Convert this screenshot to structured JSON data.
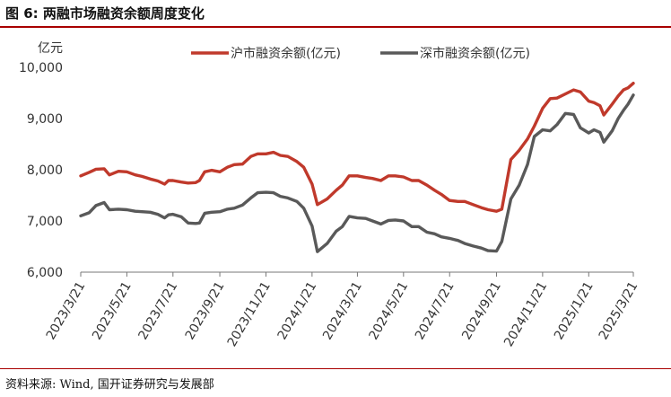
{
  "header": {
    "title": "图 6:  两融市场融资余额周度变化"
  },
  "footer": {
    "source": "资料来源: Wind, 国开证券研究与发展部"
  },
  "colors": {
    "accent": "#a80000",
    "series_sh": "#c0392b",
    "series_sz": "#595959"
  },
  "chart_data": {
    "type": "line",
    "ylabel": "亿元",
    "ylim": [
      6000,
      10000
    ],
    "yticks": [
      "6,000",
      "7,000",
      "8,000",
      "9,000",
      "10,000"
    ],
    "ytick_values": [
      6000,
      7000,
      8000,
      9000,
      10000
    ],
    "xlim": [
      "2023-03-21",
      "2025-03-21"
    ],
    "x_tick_labels": [
      "2023/3/21",
      "2023/5/21",
      "2023/7/21",
      "2023/9/21",
      "2023/11/21",
      "2024/1/21",
      "2024/3/21",
      "2024/5/21",
      "2024/7/21",
      "2024/9/21",
      "2024/11/21",
      "2025/1/21",
      "2025/3/21"
    ],
    "x_tick_dates": [
      "2023-03-21",
      "2023-05-21",
      "2023-07-21",
      "2023-09-21",
      "2023-11-21",
      "2024-01-21",
      "2024-03-21",
      "2024-05-21",
      "2024-07-21",
      "2024-09-21",
      "2024-11-21",
      "2025-01-21",
      "2025-03-21"
    ],
    "grid": false,
    "legend_position": "top-right",
    "series": [
      {
        "name": "沪市融资余额(亿元)",
        "color": "#c0392b",
        "points": [
          [
            "2023-03-21",
            7880
          ],
          [
            "2023-04-01",
            7950
          ],
          [
            "2023-04-10",
            8010
          ],
          [
            "2023-04-21",
            8020
          ],
          [
            "2023-04-28",
            7900
          ],
          [
            "2023-05-10",
            7970
          ],
          [
            "2023-05-21",
            7960
          ],
          [
            "2023-06-01",
            7900
          ],
          [
            "2023-06-10",
            7870
          ],
          [
            "2023-06-21",
            7820
          ],
          [
            "2023-07-01",
            7780
          ],
          [
            "2023-07-10",
            7720
          ],
          [
            "2023-07-15",
            7790
          ],
          [
            "2023-07-21",
            7790
          ],
          [
            "2023-08-01",
            7760
          ],
          [
            "2023-08-10",
            7740
          ],
          [
            "2023-08-20",
            7750
          ],
          [
            "2023-08-25",
            7790
          ],
          [
            "2023-09-01",
            7960
          ],
          [
            "2023-09-10",
            7990
          ],
          [
            "2023-09-21",
            7960
          ],
          [
            "2023-10-01",
            8050
          ],
          [
            "2023-10-10",
            8100
          ],
          [
            "2023-10-21",
            8110
          ],
          [
            "2023-11-01",
            8260
          ],
          [
            "2023-11-10",
            8310
          ],
          [
            "2023-11-21",
            8310
          ],
          [
            "2023-12-01",
            8340
          ],
          [
            "2023-12-10",
            8280
          ],
          [
            "2023-12-20",
            8260
          ],
          [
            "2024-01-01",
            8160
          ],
          [
            "2024-01-10",
            8050
          ],
          [
            "2024-01-21",
            7720
          ],
          [
            "2024-01-28",
            7320
          ],
          [
            "2024-02-10",
            7430
          ],
          [
            "2024-02-22",
            7600
          ],
          [
            "2024-03-01",
            7700
          ],
          [
            "2024-03-10",
            7880
          ],
          [
            "2024-03-21",
            7880
          ],
          [
            "2024-04-01",
            7850
          ],
          [
            "2024-04-10",
            7830
          ],
          [
            "2024-04-21",
            7790
          ],
          [
            "2024-05-01",
            7880
          ],
          [
            "2024-05-10",
            7880
          ],
          [
            "2024-05-21",
            7860
          ],
          [
            "2024-06-01",
            7790
          ],
          [
            "2024-06-10",
            7790
          ],
          [
            "2024-06-21",
            7700
          ],
          [
            "2024-07-01",
            7600
          ],
          [
            "2024-07-10",
            7520
          ],
          [
            "2024-07-21",
            7400
          ],
          [
            "2024-08-01",
            7380
          ],
          [
            "2024-08-10",
            7380
          ],
          [
            "2024-08-21",
            7320
          ],
          [
            "2024-09-01",
            7260
          ],
          [
            "2024-09-10",
            7220
          ],
          [
            "2024-09-21",
            7190
          ],
          [
            "2024-09-28",
            7230
          ],
          [
            "2024-10-10",
            8200
          ],
          [
            "2024-10-21",
            8380
          ],
          [
            "2024-11-01",
            8600
          ],
          [
            "2024-11-10",
            8850
          ],
          [
            "2024-11-21",
            9200
          ],
          [
            "2024-12-01",
            9390
          ],
          [
            "2024-12-10",
            9400
          ],
          [
            "2024-12-21",
            9480
          ],
          [
            "2025-01-01",
            9560
          ],
          [
            "2025-01-10",
            9520
          ],
          [
            "2025-01-21",
            9340
          ],
          [
            "2025-01-28",
            9310
          ],
          [
            "2025-02-05",
            9250
          ],
          [
            "2025-02-10",
            9070
          ],
          [
            "2025-02-21",
            9280
          ],
          [
            "2025-03-01",
            9440
          ],
          [
            "2025-03-08",
            9560
          ],
          [
            "2025-03-14",
            9600
          ],
          [
            "2025-03-21",
            9690
          ]
        ]
      },
      {
        "name": "深市融资余额(亿元)",
        "color": "#595959",
        "points": [
          [
            "2023-03-21",
            7100
          ],
          [
            "2023-04-01",
            7160
          ],
          [
            "2023-04-10",
            7300
          ],
          [
            "2023-04-21",
            7360
          ],
          [
            "2023-04-28",
            7220
          ],
          [
            "2023-05-10",
            7230
          ],
          [
            "2023-05-21",
            7220
          ],
          [
            "2023-06-01",
            7190
          ],
          [
            "2023-06-10",
            7180
          ],
          [
            "2023-06-21",
            7170
          ],
          [
            "2023-07-01",
            7130
          ],
          [
            "2023-07-10",
            7060
          ],
          [
            "2023-07-15",
            7120
          ],
          [
            "2023-07-21",
            7130
          ],
          [
            "2023-08-01",
            7080
          ],
          [
            "2023-08-10",
            6960
          ],
          [
            "2023-08-20",
            6950
          ],
          [
            "2023-08-25",
            6960
          ],
          [
            "2023-09-01",
            7150
          ],
          [
            "2023-09-10",
            7170
          ],
          [
            "2023-09-21",
            7180
          ],
          [
            "2023-10-01",
            7230
          ],
          [
            "2023-10-10",
            7250
          ],
          [
            "2023-10-21",
            7310
          ],
          [
            "2023-11-01",
            7450
          ],
          [
            "2023-11-10",
            7550
          ],
          [
            "2023-11-21",
            7560
          ],
          [
            "2023-12-01",
            7550
          ],
          [
            "2023-12-10",
            7480
          ],
          [
            "2023-12-20",
            7450
          ],
          [
            "2024-01-01",
            7380
          ],
          [
            "2024-01-10",
            7250
          ],
          [
            "2024-01-21",
            6900
          ],
          [
            "2024-01-28",
            6400
          ],
          [
            "2024-02-10",
            6560
          ],
          [
            "2024-02-22",
            6800
          ],
          [
            "2024-03-01",
            6890
          ],
          [
            "2024-03-10",
            7090
          ],
          [
            "2024-03-21",
            7060
          ],
          [
            "2024-04-01",
            7050
          ],
          [
            "2024-04-10",
            7000
          ],
          [
            "2024-04-21",
            6940
          ],
          [
            "2024-05-01",
            7010
          ],
          [
            "2024-05-10",
            7020
          ],
          [
            "2024-05-21",
            7000
          ],
          [
            "2024-06-01",
            6890
          ],
          [
            "2024-06-10",
            6890
          ],
          [
            "2024-06-21",
            6780
          ],
          [
            "2024-07-01",
            6750
          ],
          [
            "2024-07-10",
            6690
          ],
          [
            "2024-07-21",
            6660
          ],
          [
            "2024-08-01",
            6620
          ],
          [
            "2024-08-10",
            6560
          ],
          [
            "2024-08-21",
            6510
          ],
          [
            "2024-09-01",
            6470
          ],
          [
            "2024-09-10",
            6420
          ],
          [
            "2024-09-21",
            6410
          ],
          [
            "2024-09-28",
            6600
          ],
          [
            "2024-10-10",
            7430
          ],
          [
            "2024-10-21",
            7700
          ],
          [
            "2024-11-01",
            8100
          ],
          [
            "2024-11-10",
            8650
          ],
          [
            "2024-11-21",
            8780
          ],
          [
            "2024-12-01",
            8760
          ],
          [
            "2024-12-10",
            8880
          ],
          [
            "2024-12-21",
            9100
          ],
          [
            "2025-01-01",
            9080
          ],
          [
            "2025-01-10",
            8820
          ],
          [
            "2025-01-21",
            8720
          ],
          [
            "2025-01-28",
            8780
          ],
          [
            "2025-02-05",
            8730
          ],
          [
            "2025-02-10",
            8540
          ],
          [
            "2025-02-21",
            8760
          ],
          [
            "2025-03-01",
            9000
          ],
          [
            "2025-03-08",
            9160
          ],
          [
            "2025-03-14",
            9280
          ],
          [
            "2025-03-21",
            9460
          ]
        ]
      }
    ]
  }
}
